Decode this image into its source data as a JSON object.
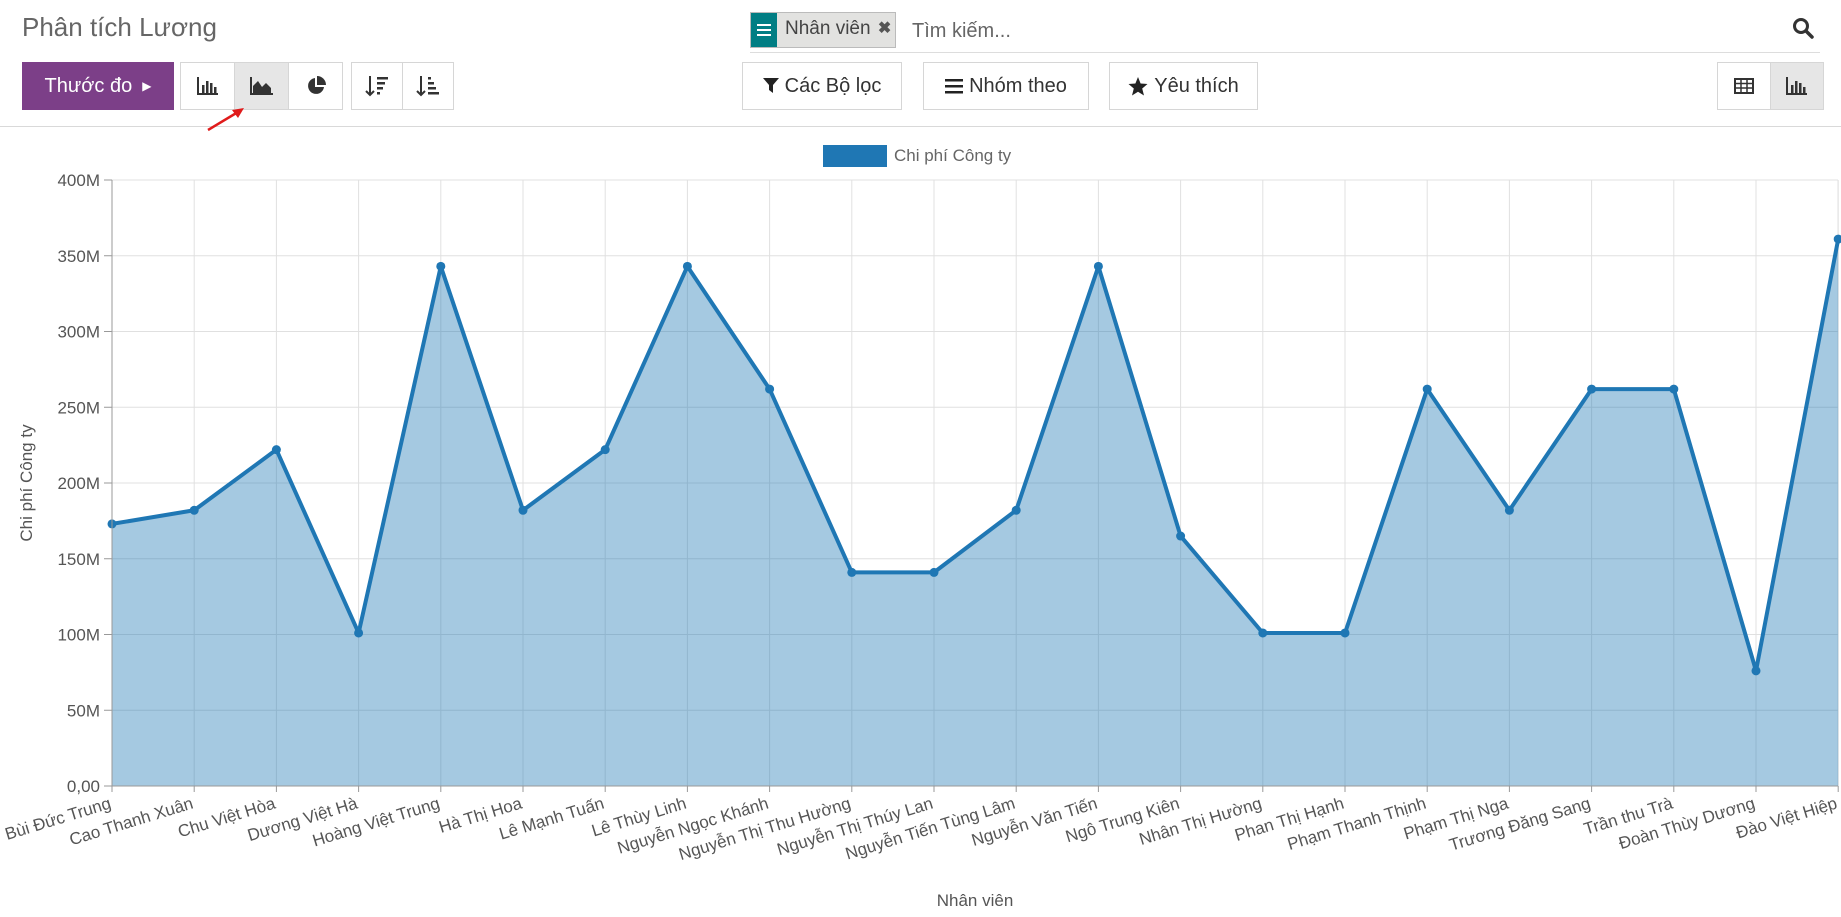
{
  "header": {
    "title": "Phân tích Lương"
  },
  "search": {
    "facet_label": "Nhân viên",
    "facet_icon": "list-icon",
    "remove_icon": "close-icon",
    "placeholder": "Tìm kiếm...",
    "search_icon": "search-icon"
  },
  "toolbar": {
    "measures_label": "Thước đo",
    "chart_types": [
      "bar-chart-icon",
      "area-chart-icon",
      "pie-chart-icon"
    ],
    "active_chart_type": "area-chart-icon",
    "sort_buttons": [
      "sort-descending-icon",
      "sort-ascending-icon"
    ],
    "filters_label": "Các Bộ lọc",
    "groupby_label": "Nhóm theo",
    "favorites_label": "Yêu thích",
    "views": [
      "pivot-view-icon",
      "graph-view-icon"
    ],
    "active_view": "graph-view-icon"
  },
  "colors": {
    "brand": "#7c3f88",
    "series": "#1f77b4",
    "facet": "#017e84",
    "annotation_arrow": "#e01b1b"
  },
  "chart_data": {
    "type": "area",
    "xlabel": "Nhân viên",
    "ylabel": "Chi phí Công ty",
    "ylim": [
      0,
      400000000
    ],
    "y_ticks": [
      "0,00",
      "50M",
      "100M",
      "150M",
      "200M",
      "250M",
      "300M",
      "350M",
      "400M"
    ],
    "grid": true,
    "legend": "top-center",
    "categories": [
      "Bùi Đức Trung",
      "Cao Thanh Xuân",
      "Chu Việt Hòa",
      "Dương Việt Hà",
      "Hoàng Việt Trung",
      "Hà Thị Hoa",
      "Lê Mạnh Tuấn",
      "Lê Thùy Linh",
      "Nguyễn Ngọc Khánh",
      "Nguyễn Thị Thu Hường",
      "Nguyễn Thị Thúy Lan",
      "Nguyễn Tiến Tùng Lâm",
      "Nguyễn Văn Tiến",
      "Ngô Trung Kiên",
      "Nhân Thị Hường",
      "Phan Thị Hạnh",
      "Phạm Thanh Thịnh",
      "Phạm Thị Nga",
      "Trương Đăng Sang",
      "Trần thu Trà",
      "Đoàn Thùy Dương",
      "Đào Việt Hiệp"
    ],
    "series": [
      {
        "name": "Chi phí Công ty",
        "values": [
          173000000,
          182000000,
          222000000,
          101000000,
          343000000,
          182000000,
          222000000,
          343000000,
          262000000,
          141000000,
          141000000,
          182000000,
          343000000,
          165000000,
          101000000,
          101000000,
          262000000,
          182000000,
          262000000,
          262000000,
          76000000,
          361000000
        ]
      }
    ]
  }
}
